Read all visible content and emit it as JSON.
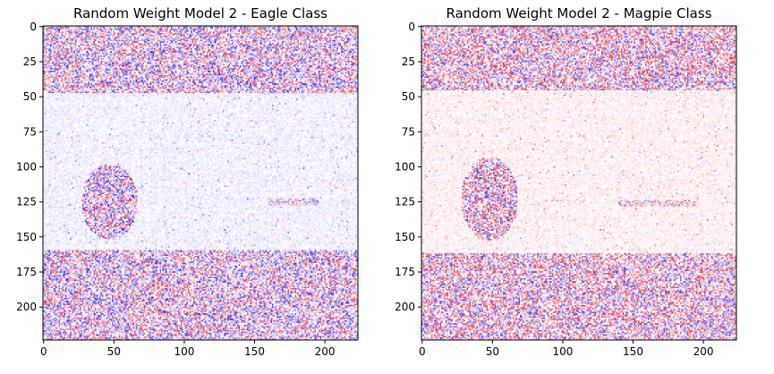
{
  "chart_data": [
    {
      "type": "heatmap",
      "title": "Random Weight Model 2 - Eagle Class",
      "xlabel": "",
      "ylabel": "",
      "xlim": [
        0,
        224
      ],
      "ylim": [
        224,
        0
      ],
      "xticks": [
        0,
        50,
        100,
        150,
        200
      ],
      "yticks": [
        0,
        25,
        50,
        75,
        100,
        125,
        150,
        175,
        200
      ],
      "colormap": "bwr",
      "colors": {
        "negative": "#0000ff",
        "zero": "#ffffff",
        "positive": "#ff0000"
      },
      "bias": -0.35,
      "grid": false,
      "noisy_rows": [
        [
          0,
          48
        ],
        [
          160,
          224
        ]
      ],
      "blob": {
        "center": [
          47,
          125
        ],
        "radius": [
          20,
          27
        ]
      },
      "streak": {
        "y": 125,
        "x": [
          160,
          195
        ]
      }
    },
    {
      "type": "heatmap",
      "title": "Random Weight Model 2 - Magpie Class",
      "xlabel": "",
      "ylabel": "",
      "xlim": [
        0,
        224
      ],
      "ylim": [
        224,
        0
      ],
      "xticks": [
        0,
        50,
        100,
        150,
        200
      ],
      "yticks": [
        0,
        25,
        50,
        75,
        100,
        125,
        150,
        175,
        200
      ],
      "colormap": "bwr",
      "colors": {
        "negative": "#0000ff",
        "zero": "#ffffff",
        "positive": "#ff0000"
      },
      "bias": 0.35,
      "grid": false,
      "noisy_rows": [
        [
          0,
          46
        ],
        [
          162,
          224
        ]
      ],
      "blob": {
        "center": [
          48,
          123
        ],
        "radius": [
          20,
          30
        ]
      },
      "streak": {
        "y": 126,
        "x": [
          140,
          195
        ]
      }
    }
  ]
}
